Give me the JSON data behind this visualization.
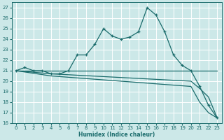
{
  "xlabel": "Humidex (Indice chaleur)",
  "bg_color": "#cce8e8",
  "line_color": "#1a6b6b",
  "grid_color": "#ffffff",
  "xlim": [
    -0.5,
    23.5
  ],
  "ylim": [
    16,
    27.5
  ],
  "yticks": [
    16,
    17,
    18,
    19,
    20,
    21,
    22,
    23,
    24,
    25,
    26,
    27
  ],
  "xticks": [
    0,
    1,
    2,
    3,
    4,
    5,
    6,
    7,
    8,
    9,
    10,
    11,
    12,
    13,
    14,
    15,
    16,
    17,
    18,
    19,
    20,
    21,
    22,
    23
  ],
  "line1_x": [
    0,
    1,
    2,
    3,
    4,
    5,
    6,
    7,
    8,
    9,
    10,
    11,
    12,
    13,
    14,
    15,
    16,
    17,
    18,
    19,
    20,
    21,
    22,
    23
  ],
  "line1_y": [
    21.0,
    21.3,
    21.0,
    21.0,
    20.7,
    20.7,
    21.0,
    22.5,
    22.5,
    23.5,
    25.0,
    24.3,
    24.0,
    24.2,
    24.7,
    27.0,
    26.3,
    24.7,
    22.5,
    21.5,
    21.0,
    19.5,
    17.7,
    16.5
  ],
  "line2_x": [
    0,
    4,
    20,
    23
  ],
  "line2_y": [
    21.0,
    21.0,
    21.0,
    21.0
  ],
  "line3_x": [
    0,
    4,
    20,
    21,
    22,
    23
  ],
  "line3_y": [
    21.0,
    20.7,
    20.0,
    19.3,
    18.5,
    16.5
  ],
  "line4_x": [
    0,
    4,
    20,
    21,
    22,
    23
  ],
  "line4_y": [
    21.0,
    20.5,
    19.5,
    18.0,
    17.0,
    16.5
  ]
}
